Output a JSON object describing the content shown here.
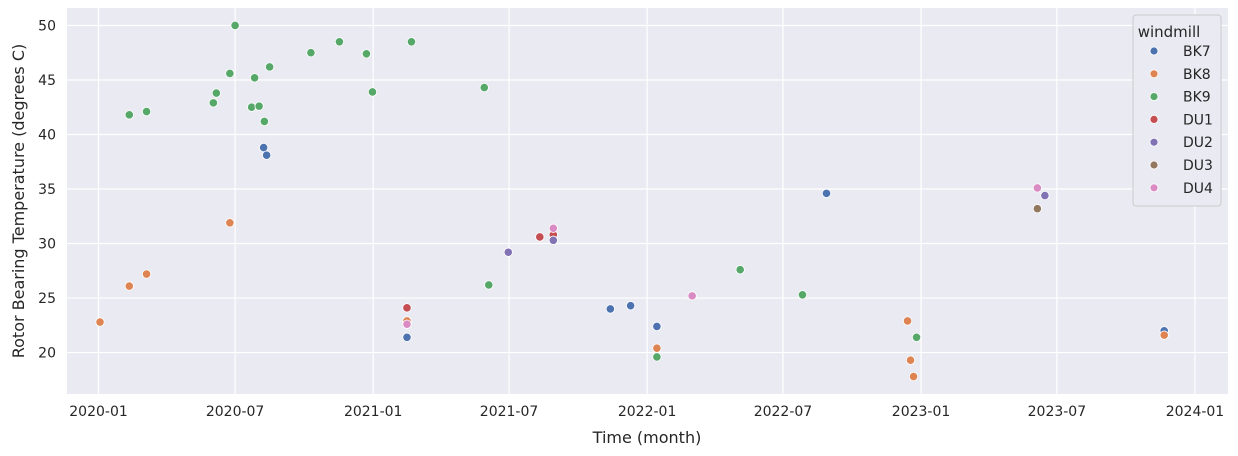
{
  "chart_data": {
    "type": "scatter",
    "xlabel": "Time (month)",
    "ylabel": "Rotor Bearing Temperature (degrees C)",
    "xlim": [
      "2019-11-20",
      "2024-02-14"
    ],
    "ylim": [
      16.2,
      51.6
    ],
    "x_ticks": [
      "2020-01",
      "2020-07",
      "2021-01",
      "2021-07",
      "2022-01",
      "2022-07",
      "2023-01",
      "2023-07",
      "2024-01"
    ],
    "y_ticks": [
      20,
      25,
      30,
      35,
      40,
      45,
      50
    ],
    "grid": true,
    "legend_position": "top-right",
    "legend_title": "windmill",
    "series": [
      {
        "name": "BK7",
        "color": "#4c72b0",
        "points": [
          {
            "x": "2020-08-08",
            "y": 38.8
          },
          {
            "x": "2020-08-12",
            "y": 38.1
          },
          {
            "x": "2021-02-15",
            "y": 21.4
          },
          {
            "x": "2021-11-13",
            "y": 24.0
          },
          {
            "x": "2021-12-10",
            "y": 24.3
          },
          {
            "x": "2022-01-14",
            "y": 22.4
          },
          {
            "x": "2022-08-28",
            "y": 34.6
          },
          {
            "x": "2023-11-21",
            "y": 22.0
          }
        ]
      },
      {
        "name": "BK8",
        "color": "#dd8452",
        "points": [
          {
            "x": "2020-01-03",
            "y": 22.8
          },
          {
            "x": "2020-02-11",
            "y": 26.1
          },
          {
            "x": "2020-03-05",
            "y": 27.2
          },
          {
            "x": "2020-06-24",
            "y": 31.9
          },
          {
            "x": "2021-02-15",
            "y": 22.9
          },
          {
            "x": "2022-01-14",
            "y": 20.4
          },
          {
            "x": "2022-12-14",
            "y": 22.9
          },
          {
            "x": "2022-12-18",
            "y": 19.3
          },
          {
            "x": "2022-12-22",
            "y": 17.8
          },
          {
            "x": "2023-11-21",
            "y": 21.6
          }
        ]
      },
      {
        "name": "BK9",
        "color": "#55a868",
        "points": [
          {
            "x": "2020-02-11",
            "y": 41.8
          },
          {
            "x": "2020-03-05",
            "y": 42.1
          },
          {
            "x": "2020-06-02",
            "y": 42.9
          },
          {
            "x": "2020-06-06",
            "y": 43.8
          },
          {
            "x": "2020-06-24",
            "y": 45.6
          },
          {
            "x": "2020-07-01",
            "y": 50.0
          },
          {
            "x": "2020-07-23",
            "y": 42.5
          },
          {
            "x": "2020-07-27",
            "y": 45.2
          },
          {
            "x": "2020-08-02",
            "y": 42.6
          },
          {
            "x": "2020-08-09",
            "y": 41.2
          },
          {
            "x": "2020-08-16",
            "y": 46.2
          },
          {
            "x": "2020-10-10",
            "y": 47.5
          },
          {
            "x": "2020-11-17",
            "y": 48.5
          },
          {
            "x": "2020-12-23",
            "y": 47.4
          },
          {
            "x": "2020-12-31",
            "y": 43.9
          },
          {
            "x": "2021-02-21",
            "y": 48.5
          },
          {
            "x": "2021-05-29",
            "y": 44.3
          },
          {
            "x": "2021-06-04",
            "y": 26.2
          },
          {
            "x": "2022-01-14",
            "y": 19.6
          },
          {
            "x": "2022-05-05",
            "y": 27.6
          },
          {
            "x": "2022-07-27",
            "y": 25.3
          },
          {
            "x": "2022-12-26",
            "y": 21.4
          }
        ]
      },
      {
        "name": "DU1",
        "color": "#c44e52",
        "points": [
          {
            "x": "2021-02-15",
            "y": 24.1
          },
          {
            "x": "2021-08-11",
            "y": 30.6
          },
          {
            "x": "2021-08-29",
            "y": 30.8
          }
        ]
      },
      {
        "name": "DU2",
        "color": "#8172b3",
        "points": [
          {
            "x": "2021-06-30",
            "y": 29.2
          },
          {
            "x": "2021-08-29",
            "y": 30.3
          },
          {
            "x": "2023-06-15",
            "y": 34.4
          }
        ]
      },
      {
        "name": "DU3",
        "color": "#937860",
        "points": [
          {
            "x": "2023-06-05",
            "y": 33.2
          }
        ]
      },
      {
        "name": "DU4",
        "color": "#da8bc3",
        "points": [
          {
            "x": "2021-02-15",
            "y": 22.6
          },
          {
            "x": "2021-08-29",
            "y": 31.4
          },
          {
            "x": "2022-03-02",
            "y": 25.2
          },
          {
            "x": "2023-06-05",
            "y": 35.1
          }
        ]
      }
    ]
  }
}
